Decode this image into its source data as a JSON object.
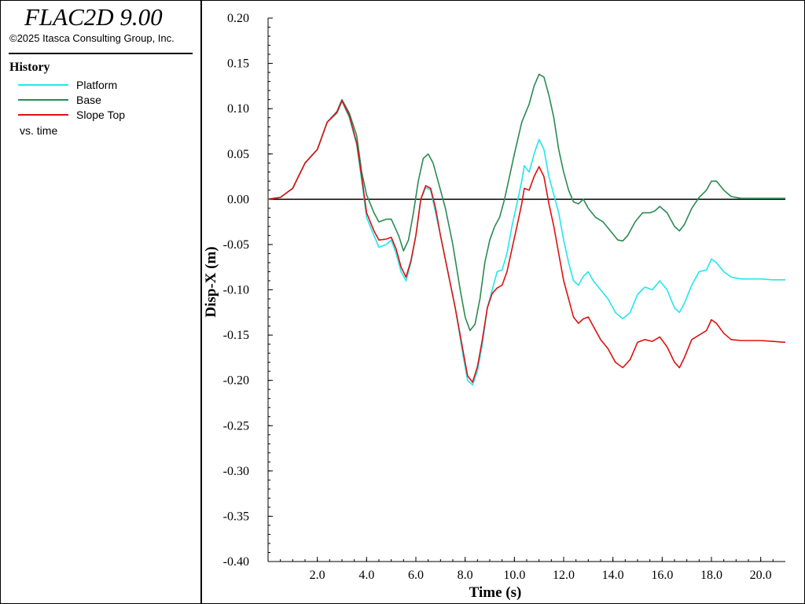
{
  "header": {
    "title": "FLAC2D 9.00",
    "copyright": "©2025 Itasca Consulting Group, Inc."
  },
  "legend": {
    "heading": "History",
    "items": [
      {
        "label": "Platform",
        "color": "#22e6ee"
      },
      {
        "label": "Base",
        "color": "#2a8a52"
      },
      {
        "label": "Slope Top",
        "color": "#dd1111"
      }
    ],
    "footnote": "vs. time"
  },
  "chart_data": {
    "type": "line",
    "title": "",
    "xlabel": "Time (s)",
    "ylabel": "Disp-X (m)",
    "xlim": [
      0,
      21
    ],
    "ylim": [
      -0.4,
      0.2
    ],
    "xticks": [
      2,
      4,
      6,
      8,
      10,
      12,
      14,
      16,
      18,
      20
    ],
    "xtick_labels": [
      "2.0",
      "4.0",
      "6.0",
      "8.0",
      "10.0",
      "12.0",
      "14.0",
      "16.0",
      "18.0",
      "20.0"
    ],
    "yticks": [
      0.2,
      0.15,
      0.1,
      0.05,
      0.0,
      -0.05,
      -0.1,
      -0.15,
      -0.2,
      -0.25,
      -0.3,
      -0.35,
      -0.4
    ],
    "ytick_labels": [
      "0.20",
      "0.15",
      "0.10",
      "0.05",
      "0.00",
      "-0.05",
      "-0.10",
      "-0.15",
      "-0.20",
      "-0.25",
      "-0.30",
      "-0.35",
      "-0.40"
    ],
    "zero_line": true,
    "grid": false,
    "series": [
      {
        "name": "Platform",
        "color": "#22e6ee",
        "points": [
          [
            0,
            0
          ],
          [
            0.5,
            0.002
          ],
          [
            1.0,
            0.012
          ],
          [
            1.5,
            0.04
          ],
          [
            2.0,
            0.055
          ],
          [
            2.4,
            0.085
          ],
          [
            2.8,
            0.095
          ],
          [
            3.0,
            0.108
          ],
          [
            3.3,
            0.09
          ],
          [
            3.6,
            0.06
          ],
          [
            3.8,
            0.02
          ],
          [
            4.0,
            -0.02
          ],
          [
            4.3,
            -0.04
          ],
          [
            4.5,
            -0.053
          ],
          [
            4.8,
            -0.05
          ],
          [
            5.0,
            -0.045
          ],
          [
            5.2,
            -0.06
          ],
          [
            5.4,
            -0.08
          ],
          [
            5.6,
            -0.09
          ],
          [
            5.8,
            -0.07
          ],
          [
            6.0,
            -0.04
          ],
          [
            6.2,
            0.0
          ],
          [
            6.4,
            0.013
          ],
          [
            6.6,
            0.01
          ],
          [
            6.8,
            -0.015
          ],
          [
            7.0,
            -0.04
          ],
          [
            7.3,
            -0.08
          ],
          [
            7.6,
            -0.12
          ],
          [
            7.9,
            -0.17
          ],
          [
            8.1,
            -0.2
          ],
          [
            8.3,
            -0.205
          ],
          [
            8.5,
            -0.19
          ],
          [
            8.7,
            -0.16
          ],
          [
            8.9,
            -0.12
          ],
          [
            9.1,
            -0.1
          ],
          [
            9.3,
            -0.08
          ],
          [
            9.5,
            -0.078
          ],
          [
            9.7,
            -0.06
          ],
          [
            9.9,
            -0.03
          ],
          [
            10.1,
            -0.005
          ],
          [
            10.3,
            0.02
          ],
          [
            10.4,
            0.037
          ],
          [
            10.6,
            0.03
          ],
          [
            10.8,
            0.05
          ],
          [
            11.0,
            0.066
          ],
          [
            11.2,
            0.055
          ],
          [
            11.4,
            0.025
          ],
          [
            11.6,
            0.005
          ],
          [
            11.8,
            -0.015
          ],
          [
            12.0,
            -0.045
          ],
          [
            12.2,
            -0.07
          ],
          [
            12.4,
            -0.09
          ],
          [
            12.6,
            -0.095
          ],
          [
            12.8,
            -0.085
          ],
          [
            13.0,
            -0.08
          ],
          [
            13.2,
            -0.09
          ],
          [
            13.5,
            -0.1
          ],
          [
            13.8,
            -0.11
          ],
          [
            14.1,
            -0.125
          ],
          [
            14.4,
            -0.132
          ],
          [
            14.7,
            -0.125
          ],
          [
            15.0,
            -0.105
          ],
          [
            15.3,
            -0.097
          ],
          [
            15.6,
            -0.1
          ],
          [
            15.9,
            -0.09
          ],
          [
            16.2,
            -0.1
          ],
          [
            16.5,
            -0.12
          ],
          [
            16.7,
            -0.125
          ],
          [
            16.9,
            -0.115
          ],
          [
            17.2,
            -0.095
          ],
          [
            17.5,
            -0.08
          ],
          [
            17.8,
            -0.078
          ],
          [
            18.0,
            -0.066
          ],
          [
            18.2,
            -0.07
          ],
          [
            18.5,
            -0.08
          ],
          [
            18.8,
            -0.086
          ],
          [
            19.2,
            -0.088
          ],
          [
            19.6,
            -0.088
          ],
          [
            20.0,
            -0.088
          ],
          [
            20.5,
            -0.089
          ],
          [
            21.0,
            -0.089
          ]
        ]
      },
      {
        "name": "Base",
        "color": "#2a8a52",
        "points": [
          [
            0,
            0
          ],
          [
            0.5,
            0.002
          ],
          [
            1.0,
            0.012
          ],
          [
            1.5,
            0.04
          ],
          [
            2.0,
            0.055
          ],
          [
            2.4,
            0.085
          ],
          [
            2.8,
            0.097
          ],
          [
            3.0,
            0.11
          ],
          [
            3.3,
            0.095
          ],
          [
            3.6,
            0.07
          ],
          [
            3.8,
            0.03
          ],
          [
            4.0,
            0.005
          ],
          [
            4.3,
            -0.015
          ],
          [
            4.5,
            -0.025
          ],
          [
            4.8,
            -0.022
          ],
          [
            5.0,
            -0.022
          ],
          [
            5.3,
            -0.04
          ],
          [
            5.5,
            -0.057
          ],
          [
            5.7,
            -0.045
          ],
          [
            5.9,
            -0.015
          ],
          [
            6.1,
            0.02
          ],
          [
            6.3,
            0.045
          ],
          [
            6.5,
            0.05
          ],
          [
            6.7,
            0.04
          ],
          [
            6.9,
            0.02
          ],
          [
            7.2,
            -0.01
          ],
          [
            7.5,
            -0.05
          ],
          [
            7.8,
            -0.1
          ],
          [
            8.0,
            -0.13
          ],
          [
            8.2,
            -0.145
          ],
          [
            8.4,
            -0.138
          ],
          [
            8.6,
            -0.11
          ],
          [
            8.8,
            -0.07
          ],
          [
            9.0,
            -0.045
          ],
          [
            9.2,
            -0.03
          ],
          [
            9.4,
            -0.02
          ],
          [
            9.6,
            0.0
          ],
          [
            9.8,
            0.025
          ],
          [
            10.0,
            0.05
          ],
          [
            10.3,
            0.085
          ],
          [
            10.6,
            0.105
          ],
          [
            10.8,
            0.125
          ],
          [
            11.0,
            0.138
          ],
          [
            11.2,
            0.135
          ],
          [
            11.4,
            0.115
          ],
          [
            11.6,
            0.09
          ],
          [
            11.8,
            0.055
          ],
          [
            12.0,
            0.03
          ],
          [
            12.2,
            0.01
          ],
          [
            12.4,
            -0.003
          ],
          [
            12.6,
            -0.005
          ],
          [
            12.8,
            0.0
          ],
          [
            13.0,
            -0.01
          ],
          [
            13.3,
            -0.02
          ],
          [
            13.6,
            -0.025
          ],
          [
            13.9,
            -0.035
          ],
          [
            14.2,
            -0.045
          ],
          [
            14.4,
            -0.046
          ],
          [
            14.6,
            -0.04
          ],
          [
            14.9,
            -0.025
          ],
          [
            15.2,
            -0.015
          ],
          [
            15.5,
            -0.015
          ],
          [
            15.7,
            -0.013
          ],
          [
            15.9,
            -0.008
          ],
          [
            16.2,
            -0.015
          ],
          [
            16.5,
            -0.03
          ],
          [
            16.7,
            -0.035
          ],
          [
            16.9,
            -0.028
          ],
          [
            17.2,
            -0.01
          ],
          [
            17.5,
            0.002
          ],
          [
            17.8,
            0.01
          ],
          [
            18.0,
            0.02
          ],
          [
            18.2,
            0.02
          ],
          [
            18.5,
            0.01
          ],
          [
            18.8,
            0.003
          ],
          [
            19.2,
            0.001
          ],
          [
            19.6,
            0.001
          ],
          [
            20.0,
            0.001
          ],
          [
            20.5,
            0.001
          ],
          [
            21.0,
            0.001
          ]
        ]
      },
      {
        "name": "Slope Top",
        "color": "#dd1111",
        "points": [
          [
            0,
            0
          ],
          [
            0.5,
            0.002
          ],
          [
            1.0,
            0.012
          ],
          [
            1.5,
            0.04
          ],
          [
            2.0,
            0.055
          ],
          [
            2.4,
            0.085
          ],
          [
            2.8,
            0.096
          ],
          [
            3.0,
            0.109
          ],
          [
            3.3,
            0.092
          ],
          [
            3.6,
            0.062
          ],
          [
            3.8,
            0.025
          ],
          [
            4.0,
            -0.015
          ],
          [
            4.3,
            -0.035
          ],
          [
            4.5,
            -0.045
          ],
          [
            4.8,
            -0.044
          ],
          [
            5.0,
            -0.042
          ],
          [
            5.2,
            -0.055
          ],
          [
            5.4,
            -0.075
          ],
          [
            5.6,
            -0.086
          ],
          [
            5.8,
            -0.068
          ],
          [
            6.0,
            -0.04
          ],
          [
            6.2,
            0.0
          ],
          [
            6.4,
            0.015
          ],
          [
            6.6,
            0.012
          ],
          [
            6.8,
            -0.01
          ],
          [
            7.0,
            -0.04
          ],
          [
            7.3,
            -0.08
          ],
          [
            7.6,
            -0.12
          ],
          [
            7.9,
            -0.165
          ],
          [
            8.1,
            -0.195
          ],
          [
            8.3,
            -0.202
          ],
          [
            8.5,
            -0.185
          ],
          [
            8.7,
            -0.155
          ],
          [
            8.9,
            -0.12
          ],
          [
            9.1,
            -0.104
          ],
          [
            9.3,
            -0.098
          ],
          [
            9.5,
            -0.095
          ],
          [
            9.7,
            -0.08
          ],
          [
            9.9,
            -0.055
          ],
          [
            10.1,
            -0.03
          ],
          [
            10.3,
            -0.005
          ],
          [
            10.4,
            0.012
          ],
          [
            10.6,
            0.01
          ],
          [
            10.8,
            0.025
          ],
          [
            11.0,
            0.036
          ],
          [
            11.2,
            0.025
          ],
          [
            11.4,
            -0.005
          ],
          [
            11.6,
            -0.03
          ],
          [
            11.8,
            -0.06
          ],
          [
            12.0,
            -0.09
          ],
          [
            12.2,
            -0.11
          ],
          [
            12.4,
            -0.13
          ],
          [
            12.6,
            -0.137
          ],
          [
            12.8,
            -0.132
          ],
          [
            13.0,
            -0.13
          ],
          [
            13.2,
            -0.14
          ],
          [
            13.5,
            -0.155
          ],
          [
            13.8,
            -0.165
          ],
          [
            14.1,
            -0.18
          ],
          [
            14.4,
            -0.186
          ],
          [
            14.7,
            -0.177
          ],
          [
            15.0,
            -0.158
          ],
          [
            15.3,
            -0.155
          ],
          [
            15.6,
            -0.157
          ],
          [
            15.9,
            -0.152
          ],
          [
            16.2,
            -0.163
          ],
          [
            16.5,
            -0.18
          ],
          [
            16.7,
            -0.186
          ],
          [
            16.9,
            -0.175
          ],
          [
            17.2,
            -0.155
          ],
          [
            17.5,
            -0.15
          ],
          [
            17.8,
            -0.145
          ],
          [
            18.0,
            -0.133
          ],
          [
            18.2,
            -0.137
          ],
          [
            18.5,
            -0.148
          ],
          [
            18.8,
            -0.155
          ],
          [
            19.2,
            -0.156
          ],
          [
            19.6,
            -0.156
          ],
          [
            20.0,
            -0.156
          ],
          [
            20.5,
            -0.157
          ],
          [
            21.0,
            -0.158
          ]
        ]
      }
    ]
  }
}
